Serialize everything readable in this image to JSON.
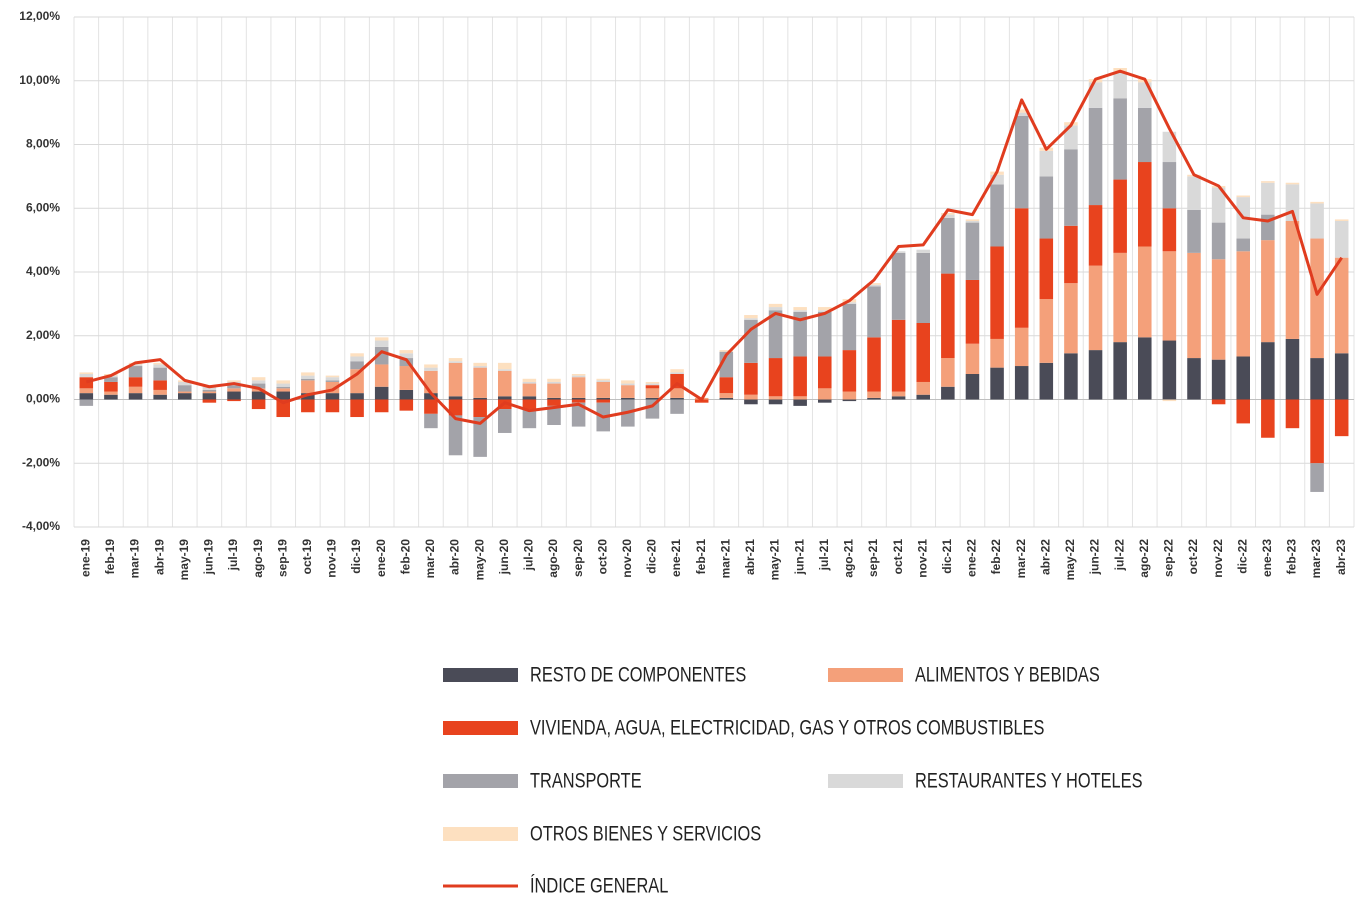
{
  "chart_data": {
    "type": "bar",
    "categories": [
      "ene-19",
      "feb-19",
      "mar-19",
      "abr-19",
      "may-19",
      "jun-19",
      "jul-19",
      "ago-19",
      "sep-19",
      "oct-19",
      "nov-19",
      "dic-19",
      "ene-20",
      "feb-20",
      "mar-20",
      "abr-20",
      "may-20",
      "jun-20",
      "jul-20",
      "ago-20",
      "sep-20",
      "oct-20",
      "nov-20",
      "dic-20",
      "ene-21",
      "feb-21",
      "mar-21",
      "abr-21",
      "may-21",
      "jun-21",
      "jul-21",
      "ago-21",
      "sep-21",
      "oct-21",
      "nov-21",
      "dic-21",
      "ene-22",
      "feb-22",
      "mar-22",
      "abr-22",
      "may-22",
      "jun-22",
      "jul-22",
      "ago-22",
      "sep-22",
      "oct-22",
      "nov-22",
      "dic-22",
      "ene-23",
      "feb-23",
      "mar-23",
      "abr-23"
    ],
    "ylim": [
      -4,
      12
    ],
    "yticks": [
      {
        "value": -4,
        "label": "-4,00%"
      },
      {
        "value": -2,
        "label": "-2,00%"
      },
      {
        "value": 0,
        "label": "0,00%"
      },
      {
        "value": 2,
        "label": "2,00%"
      },
      {
        "value": 4,
        "label": "4,00%"
      },
      {
        "value": 6,
        "label": "6,00%"
      },
      {
        "value": 8,
        "label": "8,00%"
      },
      {
        "value": 10,
        "label": "10,00%"
      },
      {
        "value": 12,
        "label": "12,00%"
      }
    ],
    "grid": true,
    "series": [
      {
        "name": "RESTO DE COMPONENTES",
        "color": "#4a4b57",
        "values": [
          0.2,
          0.15,
          0.2,
          0.15,
          0.2,
          0.2,
          0.25,
          0.25,
          0.25,
          0.2,
          0.2,
          0.2,
          0.4,
          0.3,
          0.2,
          0.1,
          0.05,
          0.1,
          0.1,
          0.05,
          0.05,
          0.05,
          0.05,
          0.05,
          0.05,
          0.0,
          0.05,
          -0.15,
          -0.15,
          -0.2,
          -0.1,
          -0.05,
          0.05,
          0.1,
          0.15,
          0.4,
          0.8,
          1.0,
          1.05,
          1.15,
          1.45,
          1.55,
          1.8,
          1.95,
          1.85,
          1.3,
          1.25,
          1.35,
          1.8,
          1.9,
          1.3,
          1.45
        ]
      },
      {
        "name": "ALIMENTOS Y BEBIDAS",
        "color": "#f4a07a",
        "values": [
          0.15,
          0.1,
          0.2,
          0.15,
          0.05,
          0.05,
          0.1,
          0.1,
          0.1,
          0.4,
          0.35,
          0.75,
          0.7,
          0.75,
          0.7,
          1.05,
          0.95,
          0.8,
          0.4,
          0.45,
          0.65,
          0.5,
          0.4,
          0.3,
          0.3,
          0.05,
          0.15,
          0.15,
          0.1,
          0.1,
          0.35,
          0.25,
          0.2,
          0.15,
          0.4,
          0.9,
          0.95,
          0.9,
          1.2,
          2.0,
          2.2,
          2.65,
          2.8,
          2.85,
          2.8,
          3.3,
          3.15,
          3.3,
          3.2,
          3.7,
          3.75,
          3.0
        ]
      },
      {
        "name": "VIVIENDA, AGUA, ELECTRICIDAD, GAS Y OTROS COMBUSTIBLES",
        "color": "#e8431e",
        "values": [
          0.35,
          0.3,
          0.3,
          0.3,
          0.0,
          -0.1,
          -0.05,
          -0.3,
          -0.55,
          -0.4,
          -0.4,
          -0.55,
          -0.4,
          -0.35,
          -0.45,
          -0.5,
          -0.55,
          -0.3,
          -0.3,
          -0.2,
          -0.1,
          -0.1,
          0.0,
          0.1,
          0.45,
          -0.1,
          0.5,
          1.0,
          1.2,
          1.25,
          1.0,
          1.3,
          1.7,
          2.25,
          1.85,
          2.65,
          2.0,
          2.9,
          3.75,
          1.9,
          1.8,
          1.9,
          2.3,
          2.65,
          1.35,
          0.0,
          -0.15,
          -0.75,
          -1.2,
          -0.9,
          -2.0,
          -1.15
        ]
      },
      {
        "name": "TRANSPORTE",
        "color": "#a3a3a9",
        "values": [
          -0.2,
          0.15,
          0.35,
          0.4,
          0.2,
          0.05,
          0.1,
          0.15,
          0.05,
          0.05,
          0.05,
          0.25,
          0.55,
          0.25,
          -0.45,
          -1.25,
          -1.25,
          -0.75,
          -0.6,
          -0.6,
          -0.75,
          -0.9,
          -0.85,
          -0.6,
          -0.45,
          0.0,
          0.8,
          1.35,
          1.5,
          1.4,
          1.4,
          1.45,
          1.6,
          2.1,
          2.2,
          1.75,
          1.8,
          1.95,
          2.9,
          1.95,
          2.4,
          3.05,
          2.55,
          1.7,
          1.45,
          1.35,
          1.15,
          0.4,
          0.8,
          0.0,
          -0.9,
          0.0
        ]
      },
      {
        "name": "RESTAURANTES Y HOTELES",
        "color": "#d9d9d9",
        "values": [
          0.1,
          0.05,
          0.05,
          0.1,
          0.1,
          0.1,
          0.1,
          0.1,
          0.1,
          0.1,
          0.1,
          0.15,
          0.2,
          0.15,
          0.1,
          0.05,
          0.05,
          0.05,
          0.05,
          0.05,
          0.05,
          0.05,
          0.05,
          0.05,
          0.05,
          0.0,
          0.0,
          0.05,
          0.1,
          0.05,
          0.05,
          0.05,
          0.05,
          0.05,
          0.1,
          0.1,
          0.05,
          0.3,
          0.1,
          0.8,
          0.75,
          0.8,
          0.85,
          0.8,
          0.95,
          1.05,
          1.1,
          1.3,
          1.0,
          1.15,
          1.1,
          1.15
        ]
      },
      {
        "name": "OTROS BIENES Y SERVICIOS",
        "color": "#fde0c0",
        "values": [
          0.05,
          0.05,
          0.05,
          0.05,
          0.05,
          0.05,
          0.05,
          0.1,
          0.1,
          0.1,
          0.05,
          0.1,
          0.1,
          0.1,
          0.1,
          0.1,
          0.1,
          0.2,
          0.1,
          0.1,
          0.05,
          0.05,
          0.1,
          0.05,
          0.1,
          0.0,
          0.05,
          0.1,
          0.1,
          0.1,
          0.1,
          0.1,
          0.05,
          0.0,
          0.0,
          0.05,
          0.05,
          0.1,
          0.1,
          0.1,
          0.1,
          0.1,
          0.1,
          0.1,
          -0.05,
          0.05,
          0.05,
          0.05,
          0.05,
          0.05,
          0.05,
          0.05
        ]
      },
      {
        "name": "ÍNDICE GENERAL",
        "type": "line",
        "color": "#e03c1f",
        "values": [
          0.55,
          0.75,
          1.15,
          1.25,
          0.6,
          0.4,
          0.5,
          0.35,
          -0.1,
          0.15,
          0.3,
          0.8,
          1.5,
          1.25,
          0.2,
          -0.6,
          -0.75,
          -0.1,
          -0.35,
          -0.25,
          -0.15,
          -0.55,
          -0.4,
          -0.2,
          0.5,
          0.0,
          1.4,
          2.2,
          2.7,
          2.5,
          2.7,
          3.1,
          3.75,
          4.8,
          4.85,
          5.95,
          5.8,
          7.15,
          9.4,
          7.85,
          8.6,
          10.05,
          10.3,
          10.05,
          8.5,
          7.05,
          6.7,
          5.7,
          5.6,
          5.9,
          3.3,
          4.45
        ]
      }
    ]
  }
}
